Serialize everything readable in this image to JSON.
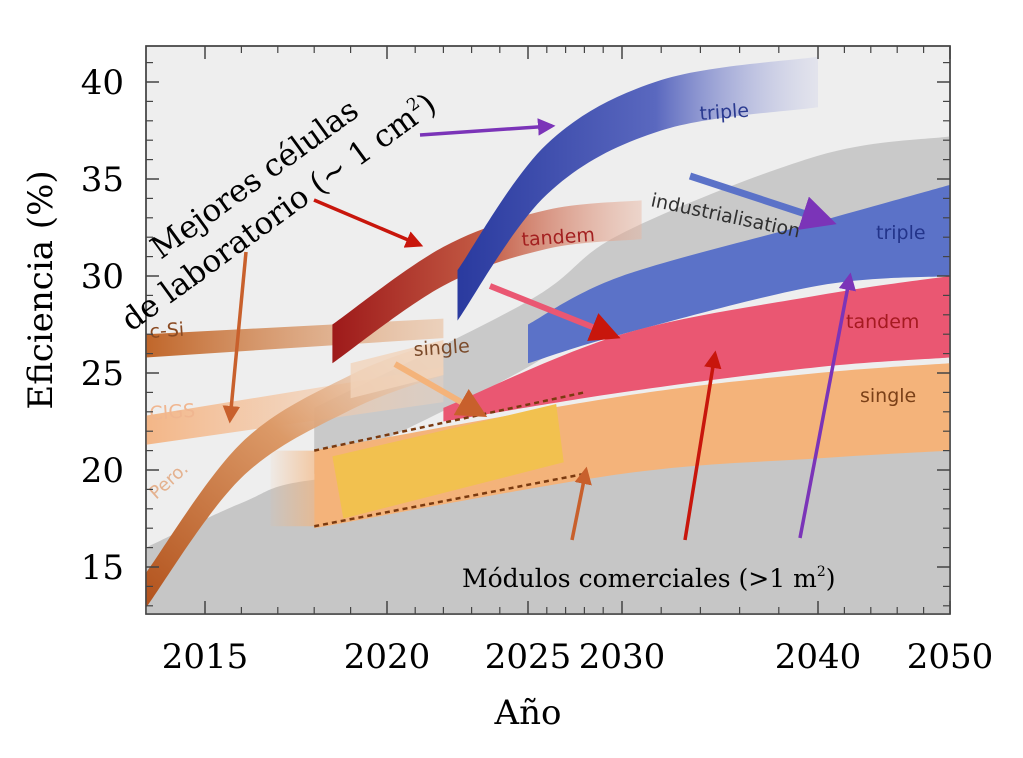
{
  "chart_data": {
    "type": "area",
    "xlabel": "Año",
    "ylabel": "Eficiencia (%)",
    "xlim": [
      2013,
      2050
    ],
    "ylim": [
      12.5,
      42
    ],
    "x_ticks": [
      {
        "value": 2015,
        "label": "2015"
      },
      {
        "value": 2020,
        "label": "2020"
      },
      {
        "value": 2025,
        "label": "2025"
      },
      {
        "value": 2030,
        "label": "2030"
      },
      {
        "value": 2040,
        "label": "2040"
      },
      {
        "value": 2050,
        "label": "2050"
      }
    ],
    "y_ticks": [
      {
        "value": 15,
        "label": "15"
      },
      {
        "value": 20,
        "label": "20"
      },
      {
        "value": 25,
        "label": "25"
      },
      {
        "value": 30,
        "label": "30"
      },
      {
        "value": 35,
        "label": "35"
      },
      {
        "value": 40,
        "label": "40"
      }
    ],
    "grid": false,
    "annotations": {
      "lab_cells_line1": "Mejores células",
      "lab_cells_line2": "de laboratorio (~ 1 cm",
      "lab_cells_sup": "2",
      "lab_cells_close": ")",
      "modules": "Módulos comerciales (>1 m",
      "modules_sup": "2",
      "modules_close": ")"
    },
    "band_labels": {
      "c_si": "c-Si",
      "cigs": "CIGS",
      "pero": "Pero.",
      "single_lab": "single",
      "tandem_lab": "tandem",
      "triple_lab": "triple",
      "industrialisation": "industrialisation",
      "triple_module": "triple",
      "tandem_module": "tandem",
      "single_module": "single"
    },
    "series": [
      {
        "name": "c-Si",
        "x": [
          2013,
          2022
        ],
        "y_low": [
          25.8,
          26.8
        ],
        "y_high": [
          27.0,
          27.8
        ]
      },
      {
        "name": "CIGS",
        "x": [
          2013,
          2022
        ],
        "y_low": [
          21.3,
          23.5
        ],
        "y_high": [
          22.8,
          25.3
        ]
      },
      {
        "name": "Pero.",
        "x": [
          2013,
          2016,
          2019,
          2022
        ],
        "y_center": [
          13.8,
          20.5,
          24.0,
          25.8
        ]
      },
      {
        "name": "tandem",
        "x": [
          2018.5,
          2022,
          2026,
          2031
        ],
        "y_center": [
          26.5,
          30.5,
          32.4,
          32.9
        ]
      },
      {
        "name": "triple",
        "x": [
          2022.5,
          2026,
          2032,
          2040
        ],
        "y_center": [
          29.0,
          35.5,
          38.8,
          40.0
        ]
      },
      {
        "name": "industrialisation",
        "x": [
          2018,
          2025,
          2030,
          2040,
          2050
        ],
        "y_center": [
          21.5,
          27.0,
          30.5,
          34.5,
          35.5
        ]
      },
      {
        "name": "triple",
        "x": [
          2025,
          2030,
          2040,
          2050
        ],
        "y_low": [
          25.5,
          27.0,
          29.5,
          30.0
        ],
        "y_high": [
          27.5,
          30.0,
          32.8,
          34.7
        ]
      },
      {
        "name": "tandem",
        "x": [
          2022,
          2030,
          2040,
          2050
        ],
        "y_low": [
          22.5,
          24.0,
          25.3,
          25.8
        ],
        "y_high": [
          23.2,
          27.0,
          29.0,
          30.0
        ]
      },
      {
        "name": "single",
        "x": [
          2018,
          2030,
          2040,
          2050
        ],
        "y_low": [
          17.0,
          19.8,
          20.6,
          21.0
        ],
        "y_high": [
          21.0,
          23.8,
          25.0,
          25.5
        ]
      }
    ]
  }
}
